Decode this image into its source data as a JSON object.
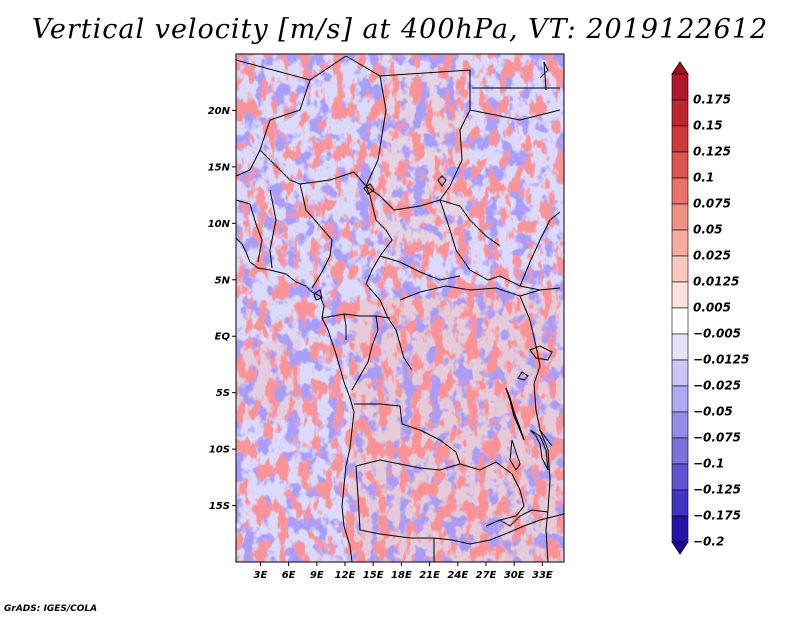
{
  "title": "Vertical velocity [m/s] at 400hPa, VT: 2019122612",
  "credit": "GrADS: IGES/COLA",
  "map": {
    "lat_labels": [
      {
        "label": "20N",
        "lat": 20
      },
      {
        "label": "15N",
        "lat": 15
      },
      {
        "label": "10N",
        "lat": 10
      },
      {
        "label": "5N",
        "lat": 5
      },
      {
        "label": "EQ",
        "lat": 0
      },
      {
        "label": "5S",
        "lat": -5
      },
      {
        "label": "10S",
        "lat": -10
      },
      {
        "label": "15S",
        "lat": -15
      }
    ],
    "lon_labels": [
      {
        "label": "3E",
        "lon": 3
      },
      {
        "label": "6E",
        "lon": 6
      },
      {
        "label": "9E",
        "lon": 9
      },
      {
        "label": "12E",
        "lon": 12
      },
      {
        "label": "15E",
        "lon": 15
      },
      {
        "label": "18E",
        "lon": 18
      },
      {
        "label": "21E",
        "lon": 21
      },
      {
        "label": "24E",
        "lon": 24
      },
      {
        "label": "27E",
        "lon": 27
      },
      {
        "label": "30E",
        "lon": 30
      },
      {
        "label": "33E",
        "lon": 33
      }
    ],
    "lat_range": [
      -20,
      25
    ],
    "lon_range": [
      0.4,
      35.3
    ]
  },
  "colorbar": {
    "levels": [
      {
        "label": "0.175",
        "color": "#b2182b"
      },
      {
        "label": "0.15",
        "color": "#c0262e"
      },
      {
        "label": "0.125",
        "color": "#cf3b3b"
      },
      {
        "label": "0.1",
        "color": "#dc5650"
      },
      {
        "label": "0.075",
        "color": "#e77368"
      },
      {
        "label": "0.05",
        "color": "#f09080"
      },
      {
        "label": "0.025",
        "color": "#f6ada0"
      },
      {
        "label": "0.0125",
        "color": "#fac8bf"
      },
      {
        "label": "0.005",
        "color": "#fde2dc"
      },
      {
        "label": "−0.005",
        "color": "#ffffff"
      },
      {
        "label": "−0.0125",
        "color": "#e3e2fb"
      },
      {
        "label": "−0.025",
        "color": "#c9c6f6"
      },
      {
        "label": "−0.05",
        "color": "#aea9f0"
      },
      {
        "label": "−0.075",
        "color": "#938de8"
      },
      {
        "label": "−0.1",
        "color": "#7a72de"
      },
      {
        "label": "−0.125",
        "color": "#5f55d1"
      },
      {
        "label": "−0.175",
        "color": "#4034c0"
      },
      {
        "label": "−0.2",
        "color": "#2414a8"
      }
    ],
    "top_arrow_color": "#a50f22",
    "bottom_arrow_color": "#1a0a96"
  }
}
